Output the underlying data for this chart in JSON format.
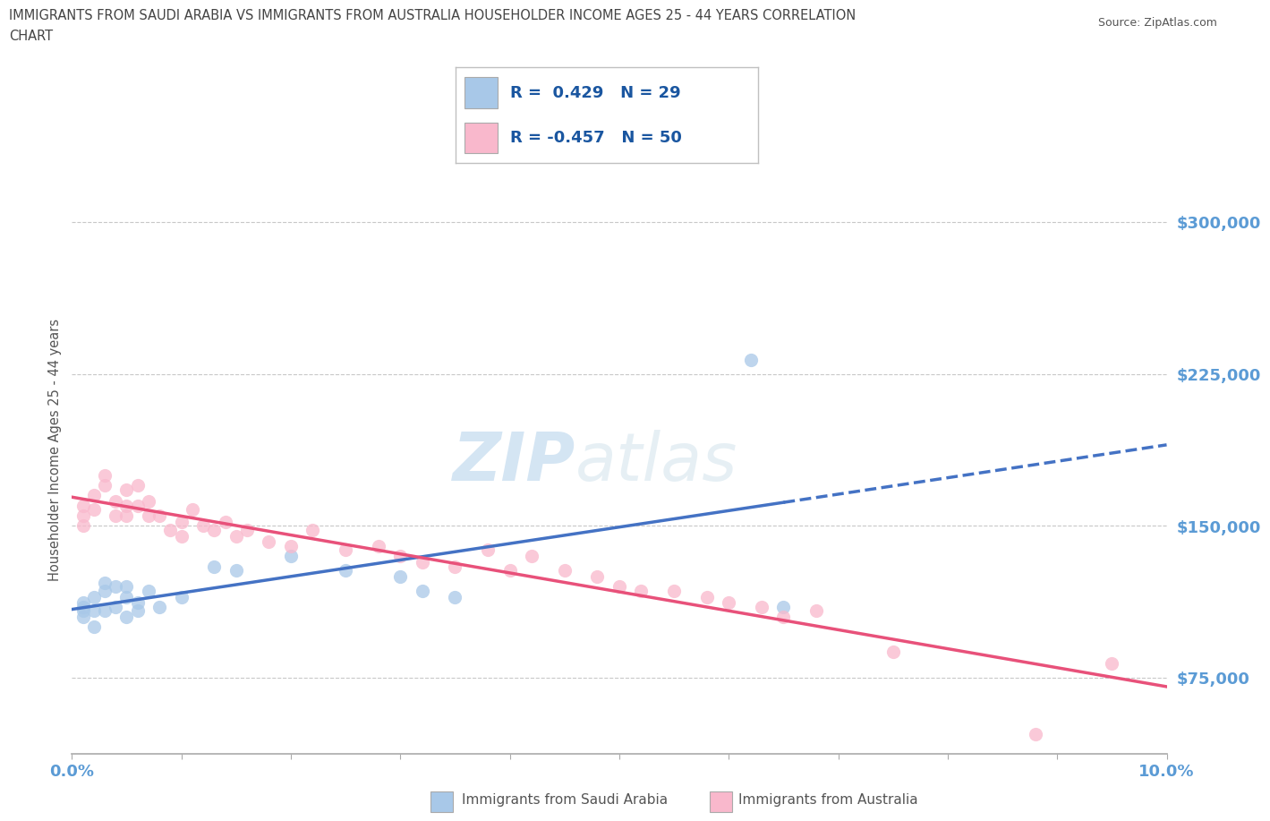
{
  "title_line1": "IMMIGRANTS FROM SAUDI ARABIA VS IMMIGRANTS FROM AUSTRALIA HOUSEHOLDER INCOME AGES 25 - 44 YEARS CORRELATION",
  "title_line2": "CHART",
  "source": "Source: ZipAtlas.com",
  "ylabel": "Householder Income Ages 25 - 44 years",
  "xlim": [
    0.0,
    0.1
  ],
  "ylim": [
    37500,
    337500
  ],
  "yticks": [
    75000,
    150000,
    225000,
    300000
  ],
  "ytick_labels": [
    "$75,000",
    "$150,000",
    "$225,000",
    "$300,000"
  ],
  "xticks": [
    0.0,
    0.01,
    0.02,
    0.03,
    0.04,
    0.05,
    0.06,
    0.07,
    0.08,
    0.09,
    0.1
  ],
  "xtick_labels": [
    "0.0%",
    "",
    "",
    "",
    "",
    "",
    "",
    "",
    "",
    "",
    "10.0%"
  ],
  "watermark_zip": "ZIP",
  "watermark_atlas": "atlas",
  "legend_entries": [
    {
      "label": "R =  0.429   N = 29",
      "color": "#a8c8e8"
    },
    {
      "label": "R = -0.457   N = 50",
      "color": "#f9b8cc"
    }
  ],
  "saudi_color": "#a8c8e8",
  "australia_color": "#f9b8cc",
  "trendline_saudi_color": "#4472c4",
  "trendline_australia_color": "#e8517a",
  "saudi_x": [
    0.001,
    0.001,
    0.001,
    0.001,
    0.002,
    0.002,
    0.002,
    0.003,
    0.003,
    0.003,
    0.004,
    0.004,
    0.005,
    0.005,
    0.005,
    0.006,
    0.006,
    0.007,
    0.008,
    0.01,
    0.013,
    0.015,
    0.02,
    0.025,
    0.03,
    0.032,
    0.035,
    0.062,
    0.065
  ],
  "saudi_y": [
    105000,
    108000,
    110000,
    112000,
    100000,
    108000,
    115000,
    108000,
    118000,
    122000,
    110000,
    120000,
    115000,
    105000,
    120000,
    108000,
    112000,
    118000,
    110000,
    115000,
    130000,
    128000,
    135000,
    128000,
    125000,
    118000,
    115000,
    232000,
    110000
  ],
  "australia_x": [
    0.001,
    0.001,
    0.001,
    0.002,
    0.002,
    0.003,
    0.003,
    0.004,
    0.004,
    0.005,
    0.005,
    0.005,
    0.006,
    0.006,
    0.007,
    0.007,
    0.008,
    0.009,
    0.01,
    0.01,
    0.011,
    0.012,
    0.013,
    0.014,
    0.015,
    0.016,
    0.018,
    0.02,
    0.022,
    0.025,
    0.028,
    0.03,
    0.032,
    0.035,
    0.038,
    0.04,
    0.042,
    0.045,
    0.048,
    0.05,
    0.052,
    0.055,
    0.058,
    0.06,
    0.063,
    0.065,
    0.068,
    0.075,
    0.088,
    0.095
  ],
  "australia_y": [
    150000,
    155000,
    160000,
    158000,
    165000,
    170000,
    175000,
    155000,
    162000,
    160000,
    168000,
    155000,
    160000,
    170000,
    155000,
    162000,
    155000,
    148000,
    152000,
    145000,
    158000,
    150000,
    148000,
    152000,
    145000,
    148000,
    142000,
    140000,
    148000,
    138000,
    140000,
    135000,
    132000,
    130000,
    138000,
    128000,
    135000,
    128000,
    125000,
    120000,
    118000,
    118000,
    115000,
    112000,
    110000,
    105000,
    108000,
    88000,
    47000,
    82000
  ],
  "background_color": "#ffffff",
  "grid_color": "#c8c8c8",
  "title_color": "#444444",
  "axis_label_color": "#555555",
  "tick_color": "#5b9bd5",
  "legend_text_color": "#1a56a0",
  "legend_n_color": "#1a56a0"
}
